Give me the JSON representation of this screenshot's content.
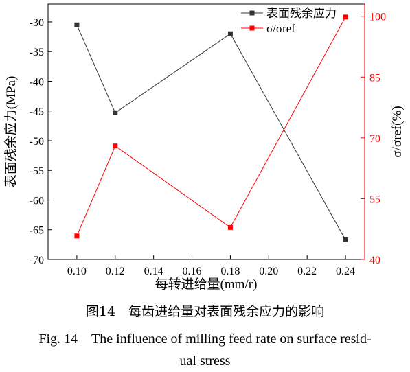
{
  "chart_data": {
    "type": "line",
    "x": [
      0.1,
      0.12,
      0.18,
      0.24
    ],
    "xlabel": "每转进给量(mm/r)",
    "xticks": [
      0.1,
      0.12,
      0.14,
      0.16,
      0.18,
      0.2,
      0.22,
      0.24
    ],
    "xtick_labels": [
      "0.10",
      "0.12",
      "0.14",
      "0.16",
      "0.18",
      "0.20",
      "0.22",
      "0.24"
    ],
    "xlim": [
      0.085,
      0.25
    ],
    "y_left": {
      "label": "表面残余应力(MPa)",
      "lim": [
        -70,
        -27
      ],
      "ticks": [
        -30,
        -35,
        -40,
        -45,
        -50,
        -55,
        -60,
        -65,
        -70
      ],
      "tick_labels": [
        "-30",
        "-35",
        "-40",
        "-45",
        "-50",
        "-55",
        "-60",
        "-65",
        "-70"
      ],
      "color": "#000000"
    },
    "y_right": {
      "label": "σ/σref(%)",
      "lim": [
        40,
        103
      ],
      "ticks": [
        40,
        55,
        70,
        85,
        100
      ],
      "tick_labels": [
        "40",
        "55",
        "70",
        "85",
        "100"
      ],
      "color": "#ff0000"
    },
    "series": [
      {
        "name": "表面残余应力",
        "axis": "left",
        "color": "#333333",
        "marker": "square",
        "values": [
          -30.5,
          -45.3,
          -32.0,
          -66.7
        ]
      },
      {
        "name": "σ/σref",
        "axis": "right",
        "color": "#ff0000",
        "marker": "square",
        "values": [
          45.8,
          68.0,
          47.9,
          99.8
        ]
      }
    ],
    "legend_position": "top-right",
    "grid": false
  },
  "caption": {
    "cn": "图14　每齿进给量对表面残余应力的影响",
    "en_line1": "Fig. 14　The influence of milling feed rate on surface resid-",
    "en_line2": "ual stress"
  }
}
